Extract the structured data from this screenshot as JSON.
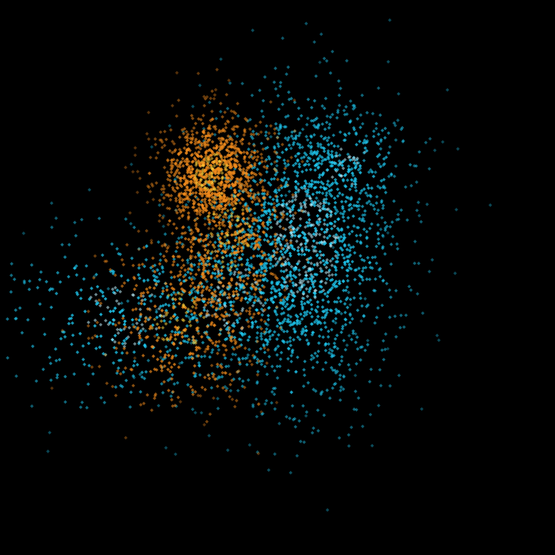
{
  "chart_data": {
    "type": "scatter",
    "title": "",
    "xlabel": "",
    "ylabel": "",
    "background": "#000000",
    "axes_visible": false,
    "grid": false,
    "legend": "none",
    "xlim": [
      0,
      1
    ],
    "ylim": [
      0,
      1
    ],
    "series": [
      {
        "id": "blue",
        "color": "#1ec8f0",
        "highlight_color": "#bff2ff",
        "points_drawn": 2600,
        "clusters": [
          {
            "cx": 0.55,
            "cy": 0.56,
            "sx": 0.085,
            "sy": 0.145,
            "weight": 0.62
          },
          {
            "cx": 0.42,
            "cy": 0.46,
            "sx": 0.09,
            "sy": 0.085,
            "weight": 0.16
          },
          {
            "cx": 0.22,
            "cy": 0.43,
            "sx": 0.11,
            "sy": 0.08,
            "weight": 0.14
          },
          {
            "cx": 0.63,
            "cy": 0.7,
            "sx": 0.06,
            "sy": 0.05,
            "weight": 0.08
          }
        ]
      },
      {
        "id": "orange",
        "color": "#f08a1c",
        "highlight_color": "#ffd23a",
        "points_drawn": 1800,
        "clusters": [
          {
            "cx": 0.38,
            "cy": 0.69,
            "sx": 0.045,
            "sy": 0.05,
            "weight": 0.45
          },
          {
            "cx": 0.41,
            "cy": 0.58,
            "sx": 0.06,
            "sy": 0.11,
            "weight": 0.35
          },
          {
            "cx": 0.32,
            "cy": 0.42,
            "sx": 0.07,
            "sy": 0.08,
            "weight": 0.2
          }
        ]
      }
    ]
  }
}
